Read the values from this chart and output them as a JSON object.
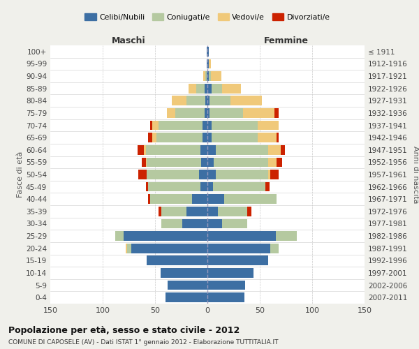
{
  "age_groups": [
    "100+",
    "95-99",
    "90-94",
    "85-89",
    "80-84",
    "75-79",
    "70-74",
    "65-69",
    "60-64",
    "55-59",
    "50-54",
    "45-49",
    "40-44",
    "35-39",
    "30-34",
    "25-29",
    "20-24",
    "15-19",
    "10-14",
    "5-9",
    "0-4"
  ],
  "birth_years": [
    "≤ 1911",
    "1912-1916",
    "1917-1921",
    "1922-1926",
    "1927-1931",
    "1932-1936",
    "1937-1941",
    "1942-1946",
    "1947-1951",
    "1952-1956",
    "1957-1961",
    "1962-1966",
    "1967-1971",
    "1972-1976",
    "1977-1981",
    "1982-1986",
    "1987-1991",
    "1992-1996",
    "1997-2001",
    "2002-2006",
    "2007-2011"
  ],
  "colors": {
    "celibi": "#3d6fa3",
    "coniugati": "#b5c9a0",
    "vedovi": "#f0c97a",
    "divorziati": "#cc2200"
  },
  "males": {
    "celibi": [
      1,
      1,
      1,
      3,
      2,
      3,
      5,
      5,
      7,
      6,
      8,
      7,
      15,
      20,
      24,
      80,
      73,
      58,
      45,
      38,
      40
    ],
    "coniugati": [
      0,
      0,
      1,
      8,
      18,
      28,
      42,
      44,
      52,
      52,
      50,
      50,
      40,
      24,
      20,
      8,
      4,
      0,
      0,
      0,
      0
    ],
    "vedovi": [
      0,
      0,
      2,
      7,
      14,
      8,
      6,
      4,
      2,
      1,
      0,
      0,
      0,
      0,
      0,
      0,
      1,
      0,
      0,
      0,
      0
    ],
    "divorziati": [
      0,
      0,
      0,
      0,
      0,
      0,
      2,
      4,
      6,
      4,
      8,
      2,
      2,
      3,
      0,
      0,
      0,
      0,
      0,
      0,
      0
    ]
  },
  "females": {
    "nubili": [
      1,
      1,
      1,
      4,
      2,
      2,
      4,
      4,
      8,
      6,
      8,
      5,
      16,
      10,
      14,
      65,
      60,
      58,
      44,
      36,
      35
    ],
    "coniugate": [
      0,
      0,
      2,
      10,
      20,
      32,
      44,
      44,
      50,
      52,
      50,
      50,
      50,
      28,
      24,
      20,
      8,
      0,
      0,
      0,
      0
    ],
    "vedove": [
      0,
      2,
      10,
      18,
      30,
      30,
      20,
      18,
      12,
      8,
      2,
      0,
      0,
      0,
      0,
      0,
      0,
      0,
      0,
      0,
      0
    ],
    "divorziate": [
      0,
      0,
      0,
      0,
      0,
      4,
      0,
      2,
      4,
      5,
      8,
      4,
      0,
      4,
      0,
      0,
      0,
      0,
      0,
      0,
      0
    ]
  },
  "xlim": 150,
  "title": "Popolazione per età, sesso e stato civile - 2012",
  "subtitle": "COMUNE DI CAPOSELE (AV) - Dati ISTAT 1° gennaio 2012 - Elaborazione TUTTITALIA.IT",
  "ylabel_left": "Fasce di età",
  "ylabel_right": "Anni di nascita",
  "label_maschi": "Maschi",
  "label_femmine": "Femmine",
  "background_color": "#f0f0eb",
  "plot_bg_color": "#ffffff",
  "legend_labels": [
    "Celibi/Nubili",
    "Coniugati/e",
    "Vedovi/e",
    "Divorziati/e"
  ]
}
